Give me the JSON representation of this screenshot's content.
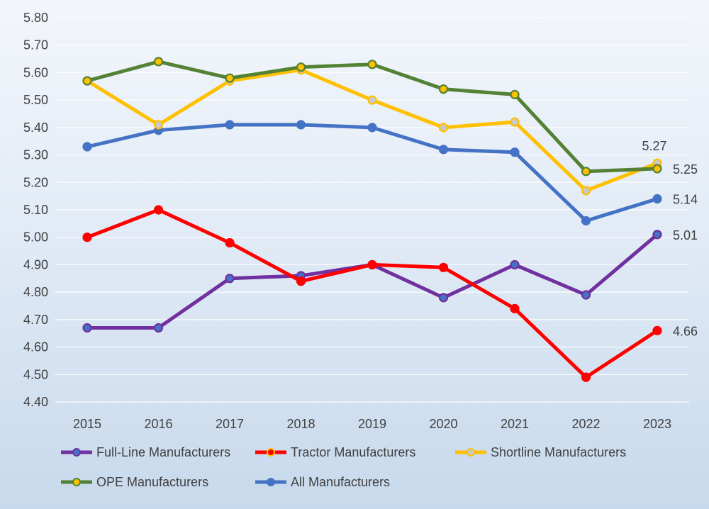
{
  "chart_data": {
    "type": "line",
    "title": "",
    "xlabel": "",
    "ylabel": "",
    "categories": [
      "2015",
      "2016",
      "2017",
      "2018",
      "2019",
      "2020",
      "2021",
      "2022",
      "2023"
    ],
    "ylim": [
      4.4,
      5.8
    ],
    "ytick_step": 0.1,
    "ytick_labels": [
      "4.40",
      "4.50",
      "4.60",
      "4.70",
      "4.80",
      "4.90",
      "5.00",
      "5.10",
      "5.20",
      "5.30",
      "5.40",
      "5.50",
      "5.60",
      "5.70",
      "5.80"
    ],
    "grid": true,
    "legend_position": "bottom",
    "series": [
      {
        "name": "Full-Line Manufacturers",
        "color": "#7030a0",
        "marker_fill": "#4472c4",
        "values": [
          4.67,
          4.67,
          4.85,
          4.86,
          4.9,
          4.78,
          4.9,
          4.79,
          5.01
        ],
        "end_label": "5.01"
      },
      {
        "name": "Tractor Manufacturers",
        "color": "#ff0000",
        "marker_fill": "#ff0000",
        "values": [
          5.0,
          5.1,
          4.98,
          4.84,
          4.9,
          4.89,
          4.74,
          4.49,
          4.66
        ],
        "end_label": "4.66"
      },
      {
        "name": "Shortline Manufacturers",
        "color": "#ffc000",
        "marker_fill": "#c9c9c9",
        "values": [
          5.57,
          5.41,
          5.57,
          5.61,
          5.5,
          5.4,
          5.42,
          5.17,
          5.27
        ],
        "end_label": "5.27"
      },
      {
        "name": "OPE Manufacturers",
        "color": "#548235",
        "marker_fill": "#ffc000",
        "values": [
          5.57,
          5.64,
          5.58,
          5.62,
          5.63,
          5.54,
          5.52,
          5.24,
          5.25
        ],
        "end_label": "5.25"
      },
      {
        "name": "All Manufacturers",
        "color": "#4472c4",
        "marker_fill": "#4472c4",
        "values": [
          5.33,
          5.39,
          5.41,
          5.41,
          5.4,
          5.32,
          5.31,
          5.06,
          5.14
        ],
        "end_label": "5.14"
      }
    ]
  }
}
